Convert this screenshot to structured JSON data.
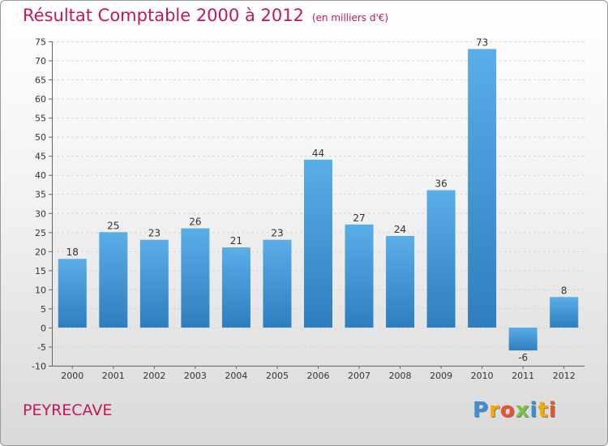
{
  "chart_data": {
    "type": "bar",
    "title": "Résultat Comptable 2000 à 2012",
    "subtitle": "(en milliers d'€)",
    "categories": [
      "2000",
      "2001",
      "2002",
      "2003",
      "2004",
      "2005",
      "2006",
      "2007",
      "2008",
      "2009",
      "2010",
      "2011",
      "2012"
    ],
    "values": [
      18,
      25,
      23,
      26,
      21,
      23,
      44,
      27,
      24,
      36,
      73,
      -6,
      8
    ],
    "ylim": [
      -10,
      75
    ],
    "yticks": [
      -10,
      -5,
      0,
      5,
      10,
      15,
      20,
      25,
      30,
      35,
      40,
      45,
      50,
      55,
      60,
      65,
      70,
      75
    ],
    "grid": true,
    "xlabel": "",
    "ylabel": "",
    "bar_color_top": "#5aaee8",
    "bar_color_bottom": "#2f7dbd"
  },
  "commune": "PEYRECAVE",
  "brand": {
    "letters": [
      "P",
      "r",
      "o",
      "x",
      "i",
      "t",
      "i"
    ],
    "colors": [
      "#3a8fd6",
      "#f2a900",
      "#e8542a",
      "#7cc142",
      "#3a8fd6",
      "#f2a900",
      "#e8542a"
    ]
  }
}
